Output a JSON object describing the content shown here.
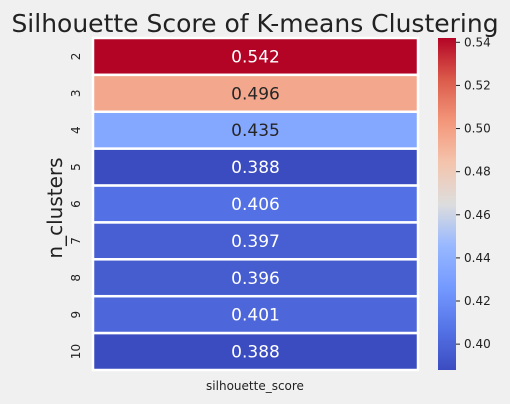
{
  "chart_data": {
    "type": "heatmap",
    "title": "Silhouette Score of K-means Clustering",
    "xlabel": "silhouette_score",
    "ylabel": "n_clusters",
    "columns": [
      "silhouette_score"
    ],
    "rows": [
      "2",
      "3",
      "4",
      "5",
      "6",
      "7",
      "8",
      "9",
      "10"
    ],
    "values": [
      0.542,
      0.496,
      0.435,
      0.388,
      0.406,
      0.397,
      0.396,
      0.401,
      0.388
    ],
    "value_labels": [
      "0.542",
      "0.496",
      "0.435",
      "0.388",
      "0.406",
      "0.397",
      "0.396",
      "0.401",
      "0.388"
    ],
    "colormap": "coolwarm",
    "vmin": 0.388,
    "vmax": 0.542,
    "colorbar_ticks": [
      "0.40",
      "0.42",
      "0.44",
      "0.46",
      "0.48",
      "0.50",
      "0.52",
      "0.54"
    ],
    "colors": {
      "background": "#f0f0f0",
      "cell_border": "#ffffff",
      "text": "#222222"
    }
  }
}
